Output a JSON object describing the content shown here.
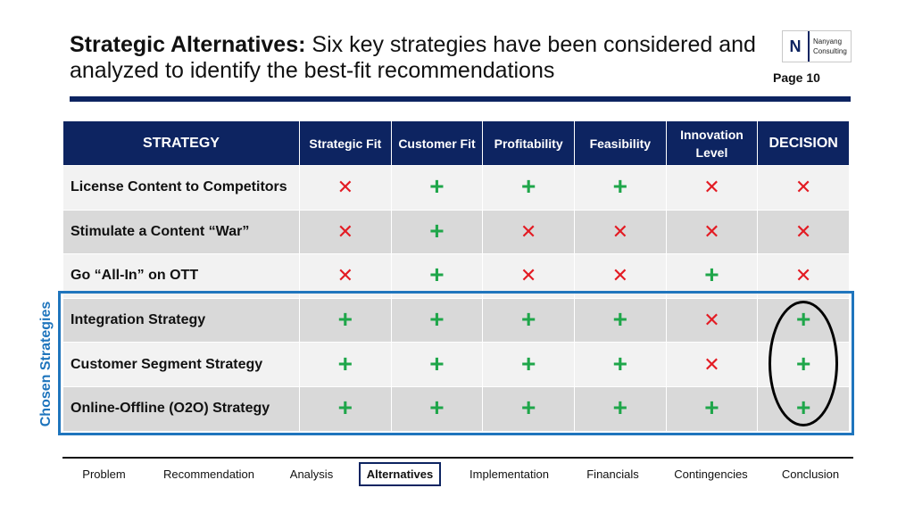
{
  "header": {
    "title_bold": "Strategic Alternatives:",
    "title_rest": " Six key strategies have been considered and analyzed to identify the best-fit recommendations",
    "page": "Page 10"
  },
  "logo": {
    "mark": "N",
    "line1": "Nanyang",
    "line2": "Consulting"
  },
  "table": {
    "columns": [
      "STRATEGY",
      "Strategic Fit",
      "Customer Fit",
      "Profitability",
      "Feasibility",
      "Innovation Level",
      "DECISION"
    ],
    "rows": [
      {
        "strategy": "License Content to Competitors",
        "marks": [
          "x",
          "+",
          "+",
          "+",
          "x",
          "x"
        ]
      },
      {
        "strategy": "Stimulate a Content “War”",
        "marks": [
          "x",
          "+",
          "x",
          "x",
          "x",
          "x"
        ]
      },
      {
        "strategy": "Go “All-In” on OTT",
        "marks": [
          "x",
          "+",
          "x",
          "x",
          "+",
          "x"
        ]
      },
      {
        "strategy": "Integration Strategy",
        "marks": [
          "+",
          "+",
          "+",
          "+",
          "x",
          "+"
        ]
      },
      {
        "strategy": "Customer Segment Strategy",
        "marks": [
          "+",
          "+",
          "+",
          "+",
          "x",
          "+"
        ]
      },
      {
        "strategy": "Online-Offline (O2O) Strategy",
        "marks": [
          "+",
          "+",
          "+",
          "+",
          "+",
          "+"
        ]
      }
    ],
    "mark_symbols": {
      "plus": "+",
      "cross": "✕"
    },
    "colors": {
      "plus": "#1fa64a",
      "cross": "#e31b23",
      "header": "#0d2461",
      "chosen": "#1f75bd"
    }
  },
  "chosen_label": "Chosen Strategies",
  "nav": {
    "items": [
      "Problem",
      "Recommendation",
      "Analysis",
      "Alternatives",
      "Implementation",
      "Financials",
      "Contingencies",
      "Conclusion"
    ],
    "active": "Alternatives"
  }
}
